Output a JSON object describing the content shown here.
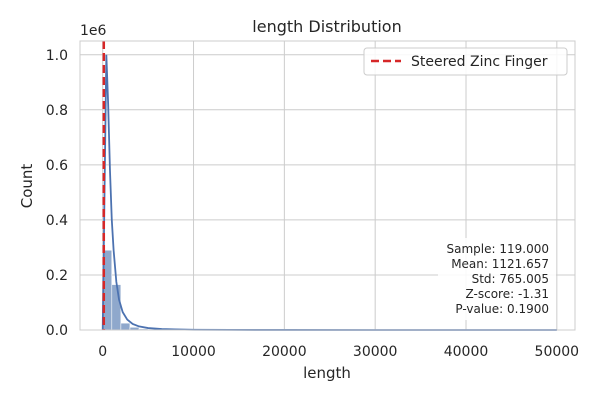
{
  "chart_data": {
    "type": "bar",
    "title": "length Distribution",
    "xlabel": "length",
    "ylabel": "Count",
    "y_multiplier_label": "1e6",
    "xlim": [
      -2500,
      52000
    ],
    "ylim": [
      0,
      1050000
    ],
    "xticks": [
      0,
      10000,
      20000,
      30000,
      40000,
      50000
    ],
    "xtick_labels": [
      "0",
      "10000",
      "20000",
      "30000",
      "40000",
      "50000"
    ],
    "yticks": [
      0,
      200000,
      400000,
      600000,
      800000,
      1000000
    ],
    "ytick_labels": [
      "0.0",
      "0.2",
      "0.4",
      "0.6",
      "0.8",
      "1.0"
    ],
    "grid": true,
    "histogram": {
      "bin_edges": [
        0,
        1000,
        2000,
        3000,
        4000,
        5000,
        6000
      ],
      "counts": [
        290000,
        165000,
        25000,
        10000,
        4000,
        2000
      ]
    },
    "kde": {
      "x": [
        0,
        200,
        400,
        600,
        800,
        1000,
        1200,
        1500,
        1800,
        2200,
        2700,
        3300,
        4000,
        5000,
        6500,
        8000,
        10000,
        14000,
        20000,
        30000,
        40000,
        50000
      ],
      "y": [
        0,
        500000,
        1000000,
        820000,
        580000,
        400000,
        290000,
        175000,
        110000,
        65000,
        38000,
        22000,
        13000,
        7000,
        3500,
        2000,
        1000,
        400,
        150,
        40,
        10,
        0
      ]
    },
    "marker_line": {
      "x": 119,
      "label": "Steered Zinc Finger",
      "color": "#d62728"
    },
    "legend": {
      "placement": "top-right",
      "entries": [
        "Steered Zinc Finger"
      ]
    },
    "stats_box": {
      "lines": [
        "Sample: 119.000",
        "Mean: 1121.657",
        "Std: 765.005",
        "Z-score: -1.31",
        "P-value: 0.1900"
      ]
    },
    "colors": {
      "bar_fill": "#8fa8cc",
      "kde_line": "#4c72b0",
      "grid": "#cccccc",
      "axes_edge": "#cccccc"
    }
  }
}
